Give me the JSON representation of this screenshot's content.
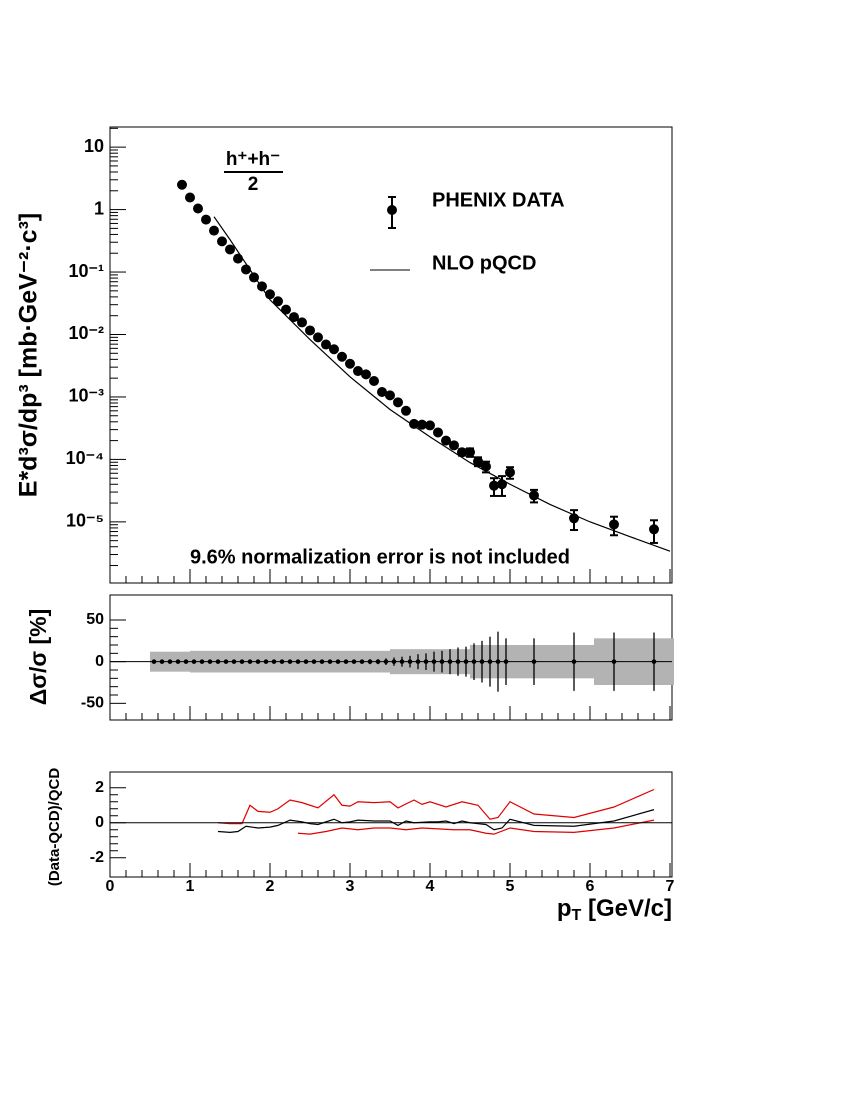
{
  "chart_data": [
    {
      "type": "scatter",
      "y_label": "E*d³σ/dp³  [mb·GeV⁻²·c³]",
      "annotation": "9.6% normalization error is not included",
      "fraction": {
        "numerator": "h⁺+h⁻",
        "denominator": "2"
      },
      "log_y": true,
      "xlim": [
        0,
        7.025
      ],
      "xticks": [
        0,
        1,
        2,
        3,
        4,
        5,
        6,
        7
      ],
      "xtick_labels": false,
      "ylim": [
        1.05e-06,
        21
      ],
      "yticks": [
        {
          "value": 1e-05,
          "label": "10⁻⁵"
        },
        {
          "value": 0.0001,
          "label": "10⁻⁴"
        },
        {
          "value": 0.001,
          "label": "10⁻³"
        },
        {
          "value": 0.01,
          "label": "10⁻²"
        },
        {
          "value": 0.1,
          "label": "10⁻¹"
        },
        1,
        10
      ],
      "series": [
        {
          "name": "PHENIX DATA",
          "color": "#000000",
          "style": "points",
          "x": [
            0.9,
            1.0,
            1.1,
            1.2,
            1.3,
            1.4,
            1.5,
            1.6,
            1.7,
            1.8,
            1.9,
            2.0,
            2.1,
            2.2,
            2.3,
            2.4,
            2.5,
            2.6,
            2.7,
            2.8,
            2.9,
            3.0,
            3.1,
            3.2,
            3.3,
            3.4,
            3.5,
            3.6,
            3.7,
            3.8,
            3.9,
            4.0,
            4.1,
            4.2,
            4.3,
            4.4,
            4.5,
            4.6,
            4.7,
            4.8,
            4.9,
            5.0,
            5.3,
            5.8,
            6.3,
            6.8
          ],
          "values": [
            2.5,
            1.56,
            1.04,
            0.69,
            0.46,
            0.31,
            0.23,
            0.164,
            0.11,
            0.082,
            0.059,
            0.044,
            0.034,
            0.025,
            0.019,
            0.0156,
            0.0116,
            0.009,
            0.0069,
            0.0058,
            0.0044,
            0.0034,
            0.0026,
            0.0023,
            0.0018,
            0.0012,
            0.00106,
            0.00082,
            0.0006,
            0.00037,
            0.00036,
            0.00035,
            0.00027,
            0.0002,
            0.000168,
            0.00013,
            0.00013,
            9.3e-05,
            7.7e-05,
            3.8e-05,
            4e-05,
            6.2e-05,
            2.65e-05,
            1.14e-05,
            9.1e-06,
            7.6e-06
          ],
          "errors": [
            null,
            null,
            null,
            null,
            null,
            null,
            null,
            null,
            null,
            null,
            null,
            null,
            null,
            null,
            null,
            null,
            null,
            null,
            null,
            null,
            null,
            null,
            null,
            null,
            null,
            null,
            null,
            null,
            null,
            null,
            null,
            null,
            null,
            null,
            null,
            1.5e-05,
            2e-05,
            1.5e-05,
            1.5e-05,
            1.2e-05,
            1.4e-05,
            1.3e-05,
            6e-06,
            4e-06,
            3e-06,
            3e-06
          ]
        },
        {
          "name": "NLO pQCD",
          "color": "#000000",
          "style": "line",
          "x": [
            1.3,
            1.5,
            2.0,
            2.5,
            3.0,
            3.5,
            4.0,
            4.5,
            5.0,
            5.5,
            6.0,
            6.5,
            7.0
          ],
          "values": [
            0.77,
            0.33,
            0.036,
            0.0083,
            0.0021,
            0.00063,
            0.00023,
            8.9e-05,
            4e-05,
            1.9e-05,
            1e-05,
            5.8e-06,
            3.4e-06
          ]
        }
      ]
    },
    {
      "type": "scatter",
      "y_label": "Δσ/σ [%]",
      "band_color": "#b3b3b3",
      "xlim": [
        0,
        7.025
      ],
      "xticks": [
        0,
        1,
        2,
        3,
        4,
        5,
        6,
        7
      ],
      "xtick_labels": false,
      "ylim": [
        -70,
        80
      ],
      "yticks": [
        -50,
        0,
        50
      ],
      "series": [
        {
          "color": "#000000",
          "x": [
            0.55,
            0.65,
            0.75,
            0.85,
            0.95,
            1.05,
            1.15,
            1.25,
            1.35,
            1.45,
            1.55,
            1.65,
            1.75,
            1.85,
            1.95,
            2.05,
            2.15,
            2.25,
            2.35,
            2.45,
            2.55,
            2.65,
            2.75,
            2.85,
            2.95,
            3.05,
            3.15,
            3.25,
            3.35,
            3.45,
            3.55,
            3.65,
            3.75,
            3.85,
            3.95,
            4.05,
            4.15,
            4.25,
            4.35,
            4.45,
            4.55,
            4.65,
            4.75,
            4.85,
            4.95,
            5.3,
            5.8,
            6.3,
            6.8
          ],
          "values": [
            0,
            0,
            0,
            0,
            0,
            0,
            0,
            0,
            0,
            0,
            0,
            0,
            0,
            0,
            0,
            0,
            0,
            0,
            0,
            0,
            0,
            0,
            0,
            0,
            0,
            0,
            0,
            0,
            0,
            0,
            0,
            0,
            0,
            0,
            0,
            0,
            0,
            0,
            0,
            0,
            0,
            0,
            0,
            0,
            0,
            0,
            0,
            0,
            0
          ],
          "errors": [
            1,
            1,
            1,
            1,
            1,
            1,
            1,
            1,
            1,
            1,
            1,
            1,
            1,
            1,
            1,
            1,
            1,
            1,
            1,
            1,
            1,
            1,
            1,
            1,
            1,
            2,
            2,
            3,
            3,
            4,
            5,
            6,
            7,
            9,
            10,
            12,
            13,
            15,
            17,
            18,
            22,
            25,
            30,
            36,
            28,
            28,
            35,
            35,
            35
          ],
          "sys_errors": [
            12,
            12,
            12,
            12,
            12,
            13,
            13,
            13,
            13,
            13,
            13,
            13,
            13,
            13,
            13,
            13,
            13,
            13,
            13,
            13,
            13,
            13,
            13,
            13,
            13,
            13,
            13,
            13,
            13,
            13,
            15,
            15,
            15,
            15,
            15,
            15,
            15,
            15,
            15,
            15,
            20,
            20,
            20,
            20,
            20,
            20,
            20,
            28,
            28
          ]
        }
      ]
    },
    {
      "type": "line",
      "y_label": "(Data-QCD)/QCD",
      "x_label": {
        "main": "p",
        "sub": "T",
        "rest": " [GeV/c]"
      },
      "xlim": [
        0,
        7.025
      ],
      "xticks": [
        0,
        1,
        2,
        3,
        4,
        5,
        6,
        7
      ],
      "xtick_labels": true,
      "ylim": [
        -3.1,
        2.9
      ],
      "yticks": [
        -2,
        0,
        2
      ],
      "series": [
        {
          "color": "#000000",
          "x": [
            1.35,
            1.5,
            1.6,
            1.7,
            1.85,
            2.0,
            2.1,
            2.25,
            2.4,
            2.5,
            2.6,
            2.7,
            2.8,
            2.9,
            3.0,
            3.1,
            3.3,
            3.5,
            3.6,
            3.7,
            3.8,
            4.0,
            4.1,
            4.2,
            4.3,
            4.4,
            4.5,
            4.6,
            4.7,
            4.8,
            4.9,
            5.0,
            5.3,
            5.8,
            6.3,
            6.8
          ],
          "values": [
            -0.5,
            -0.55,
            -0.5,
            -0.2,
            -0.3,
            -0.25,
            -0.15,
            0.15,
            0.05,
            -0.05,
            -0.1,
            0.05,
            0.2,
            0,
            0.05,
            0.15,
            0.1,
            0.1,
            -0.15,
            0.1,
            0,
            0.05,
            0.05,
            0.1,
            -0.05,
            0.1,
            0,
            -0.05,
            -0.1,
            -0.4,
            -0.3,
            0.2,
            -0.15,
            -0.2,
            0.1,
            0.75
          ]
        },
        {
          "color": "#e00000",
          "x": [
            1.35,
            1.5,
            1.65,
            1.75,
            1.85,
            2.0,
            2.1,
            2.25,
            2.4,
            2.5,
            2.6,
            2.8,
            2.9,
            3.0,
            3.1,
            3.3,
            3.5,
            3.6,
            3.8,
            3.9,
            4.0,
            4.2,
            4.4,
            4.6,
            4.75,
            4.85,
            5.0,
            5.3,
            5.8,
            6.3,
            6.8
          ],
          "values": [
            0,
            -0.05,
            -0.05,
            1.0,
            0.65,
            0.6,
            0.8,
            1.3,
            1.15,
            1.0,
            0.85,
            1.6,
            1.0,
            0.95,
            1.2,
            1.15,
            1.2,
            0.85,
            1.3,
            1.05,
            1.2,
            0.9,
            1.2,
            1.0,
            0.2,
            0.3,
            1.2,
            0.5,
            0.3,
            0.9,
            1.9
          ]
        },
        {
          "color": "#e00000",
          "x": [
            2.35,
            2.5,
            2.7,
            2.9,
            3.1,
            3.3,
            3.5,
            3.7,
            3.9,
            4.1,
            4.3,
            4.5,
            4.7,
            4.8,
            5.0,
            5.3,
            5.8,
            6.3,
            6.8
          ],
          "values": [
            -0.6,
            -0.65,
            -0.5,
            -0.3,
            -0.4,
            -0.3,
            -0.3,
            -0.4,
            -0.3,
            -0.35,
            -0.4,
            -0.4,
            -0.6,
            -0.65,
            -0.3,
            -0.5,
            -0.55,
            -0.3,
            0.15
          ]
        }
      ]
    }
  ]
}
